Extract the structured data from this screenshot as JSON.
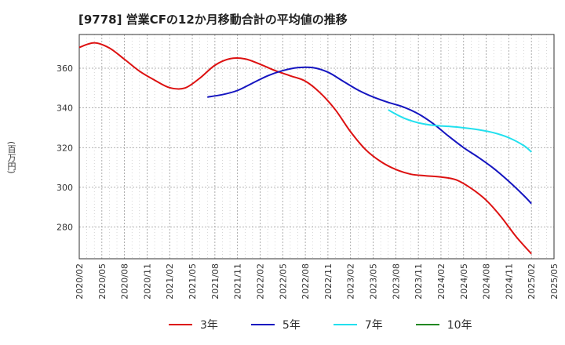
{
  "title": "[9778]  営業CFの12か月移動合計の平均値の推移",
  "chart_data": {
    "type": "line",
    "ylabel": "(百万円)",
    "xlabel": "",
    "ylim": [
      264,
      377
    ],
    "yticks": [
      280,
      300,
      320,
      340,
      360
    ],
    "xticks": [
      "2020/02",
      "2020/05",
      "2020/08",
      "2020/11",
      "2021/02",
      "2021/05",
      "2021/08",
      "2021/11",
      "2022/02",
      "2022/05",
      "2022/08",
      "2022/11",
      "2023/02",
      "2023/05",
      "2023/08",
      "2023/11",
      "2024/02",
      "2024/05",
      "2024/08",
      "2024/11",
      "2025/02",
      "2025/05"
    ],
    "grid": true,
    "legend_position": "bottom",
    "series": [
      {
        "name": "3年",
        "color": "#dd1111",
        "x": [
          "2020/02",
          "2020/04",
          "2020/06",
          "2020/08",
          "2020/10",
          "2020/12",
          "2021/02",
          "2021/04",
          "2021/06",
          "2021/08",
          "2021/10",
          "2021/12",
          "2022/02",
          "2022/04",
          "2022/06",
          "2022/08",
          "2022/10",
          "2022/12",
          "2023/02",
          "2023/04",
          "2023/06",
          "2023/08",
          "2023/10",
          "2023/12",
          "2024/02",
          "2024/04",
          "2024/06",
          "2024/08",
          "2024/10",
          "2024/12",
          "2025/02"
        ],
        "values": [
          370.5,
          372.8,
          370.2,
          364.5,
          358.5,
          354.0,
          350.2,
          350.0,
          355.0,
          361.5,
          364.8,
          364.7,
          362.0,
          358.8,
          356.2,
          353.5,
          347.5,
          339.0,
          328.0,
          319.0,
          313.0,
          309.0,
          306.6,
          305.8,
          305.2,
          303.8,
          299.5,
          293.5,
          285.0,
          275.0,
          266.5
        ]
      },
      {
        "name": "5年",
        "color": "#1515c0",
        "x": [
          "2021/07",
          "2021/09",
          "2021/11",
          "2022/01",
          "2022/03",
          "2022/05",
          "2022/07",
          "2022/09",
          "2022/11",
          "2023/01",
          "2023/03",
          "2023/05",
          "2023/07",
          "2023/09",
          "2023/11",
          "2024/01",
          "2024/03",
          "2024/05",
          "2024/07",
          "2024/09",
          "2024/11",
          "2025/01",
          "2025/02"
        ],
        "values": [
          345.5,
          346.7,
          348.8,
          352.5,
          356.2,
          358.8,
          360.3,
          360.3,
          358.0,
          353.5,
          349.0,
          345.5,
          342.8,
          340.5,
          337.0,
          332.0,
          325.8,
          320.0,
          315.0,
          309.5,
          303.0,
          295.8,
          291.8
        ]
      },
      {
        "name": "7年",
        "color": "#22e0ee",
        "x": [
          "2023/07",
          "2023/09",
          "2023/11",
          "2024/01",
          "2024/03",
          "2024/05",
          "2024/07",
          "2024/09",
          "2024/11",
          "2025/01",
          "2025/02"
        ],
        "values": [
          339.0,
          335.0,
          332.5,
          331.2,
          330.7,
          330.0,
          329.0,
          327.5,
          325.0,
          321.0,
          317.8
        ]
      },
      {
        "name": "10年",
        "color": "#228822",
        "x": [],
        "values": []
      }
    ]
  }
}
